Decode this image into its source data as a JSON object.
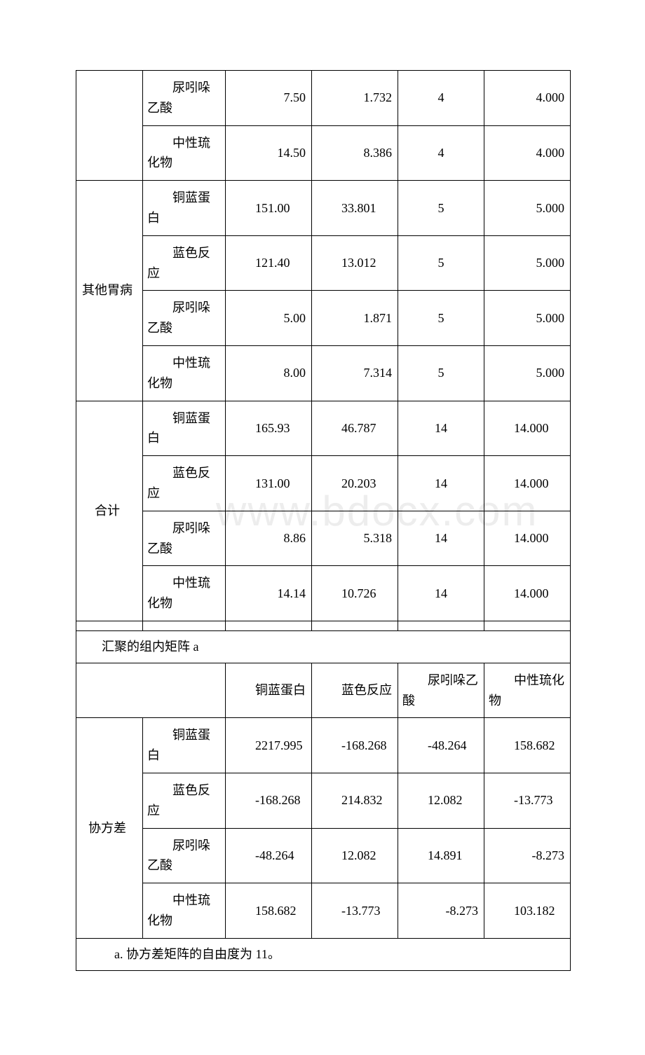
{
  "vars": {
    "v1": "铜蓝蛋白",
    "v2": "蓝色反应",
    "v3": "尿吲哚乙酸",
    "v4": "中性琉化物"
  },
  "groups": {
    "implicit": "",
    "other": "其他胃病",
    "total": "合计"
  },
  "table1": {
    "implicit": [
      {
        "var": "v3",
        "c1": "7.50",
        "c2": "1.732",
        "c3": "4",
        "c4": "4.000"
      },
      {
        "var": "v4",
        "c1": "14.50",
        "c2": "8.386",
        "c3": "4",
        "c4": "4.000"
      }
    ],
    "other": [
      {
        "var": "v1",
        "c1": "151.00",
        "c2": "33.801",
        "c3": "5",
        "c4": "5.000"
      },
      {
        "var": "v2",
        "c1": "121.40",
        "c2": "13.012",
        "c3": "5",
        "c4": "5.000"
      },
      {
        "var": "v3",
        "c1": "5.00",
        "c2": "1.871",
        "c3": "5",
        "c4": "5.000"
      },
      {
        "var": "v4",
        "c1": "8.00",
        "c2": "7.314",
        "c3": "5",
        "c4": "5.000"
      }
    ],
    "total": [
      {
        "var": "v1",
        "c1": "165.93",
        "c2": "46.787",
        "c3": "14",
        "c4": "14.000"
      },
      {
        "var": "v2",
        "c1": "131.00",
        "c2": "20.203",
        "c3": "14",
        "c4": "14.000"
      },
      {
        "var": "v3",
        "c1": "8.86",
        "c2": "5.318",
        "c3": "14",
        "c4": "14.000"
      },
      {
        "var": "v4",
        "c1": "14.14",
        "c2": "10.726",
        "c3": "14",
        "c4": "14.000"
      }
    ]
  },
  "matrix": {
    "title": "汇聚的组内矩阵 a",
    "section_label": "协方差",
    "headers": [
      "铜蓝蛋白",
      "蓝色反应",
      "尿吲哚乙酸",
      "中性琉化物"
    ],
    "rows": [
      {
        "var": "v1",
        "vals": [
          "2217.995",
          "-168.268",
          "-48.264",
          "158.682"
        ]
      },
      {
        "var": "v2",
        "vals": [
          "-168.268",
          "214.832",
          "12.082",
          "-13.773"
        ]
      },
      {
        "var": "v3",
        "vals": [
          "-48.264",
          "12.082",
          "14.891",
          "-8.273"
        ]
      },
      {
        "var": "v4",
        "vals": [
          "158.682",
          "-13.773",
          "-8.273",
          "103.182"
        ]
      }
    ],
    "footnote": "a. 协方差矩阵的自由度为 11。"
  },
  "watermark": "www.bdocx.com"
}
